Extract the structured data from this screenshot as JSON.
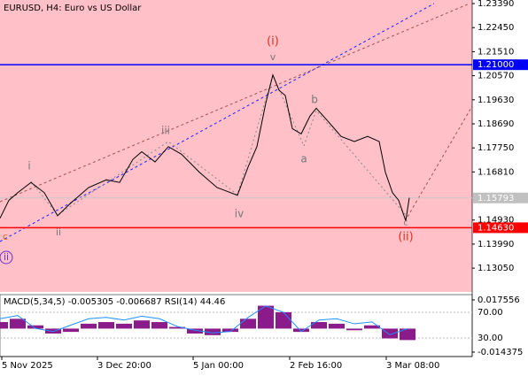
{
  "chart_data": [
    {
      "type": "line",
      "title": "EURUSD, H4:  Euro vs US Dollar",
      "background": "#ffc0c8",
      "series": [
        {
          "color": "#000000",
          "x": [
            0,
            10,
            20,
            35,
            50,
            65,
            80,
            100,
            120,
            135,
            150,
            160,
            175,
            190,
            205,
            225,
            245,
            268,
            280,
            290,
            300,
            308,
            315,
            322,
            330,
            340,
            350,
            357,
            370,
            385,
            400,
            415,
            428,
            435,
            443,
            450,
            458,
            462
          ],
          "values": [
            1.15,
            1.157,
            1.16,
            1.164,
            1.16,
            1.151,
            1.156,
            1.162,
            1.165,
            1.164,
            1.173,
            1.176,
            1.172,
            1.178,
            1.175,
            1.168,
            1.162,
            1.159,
            1.17,
            1.178,
            1.195,
            1.206,
            1.2,
            1.198,
            1.185,
            1.183,
            1.19,
            1.193,
            1.188,
            1.182,
            1.18,
            1.182,
            1.18,
            1.168,
            1.16,
            1.157,
            1.149,
            1.158
          ]
        }
      ],
      "xlim": [
        0,
        533
      ],
      "xticks": [
        {
          "value": 2,
          "label": "5 Nov 2025"
        },
        {
          "value": 110,
          "label": "3 Dec 20:00"
        },
        {
          "value": 218,
          "label": "5 Jan 00:00"
        },
        {
          "value": 327,
          "label": "2 Feb 16:00"
        },
        {
          "value": 436,
          "label": "3 Mar 08:00"
        }
      ],
      "ylim": [
        1.1212,
        1.2353
      ],
      "yticks": [
        {
          "value": 1.2339,
          "label": "1.23390"
        },
        {
          "value": 1.2245,
          "label": "1.22450"
        },
        {
          "value": 1.2151,
          "label": "1.21510"
        },
        {
          "value": 1.2057,
          "label": "1.20570"
        },
        {
          "value": 1.1963,
          "label": "1.19630"
        },
        {
          "value": 1.1869,
          "label": "1.18690"
        },
        {
          "value": 1.1775,
          "label": "1.17750"
        },
        {
          "value": 1.1681,
          "label": "1.16810"
        },
        {
          "value": 1.1493,
          "label": "1.14930"
        },
        {
          "value": 1.1399,
          "label": "1.13990"
        },
        {
          "value": 1.1305,
          "label": "1.13050"
        }
      ],
      "levels": [
        {
          "value": 1.21,
          "label": "1.21000",
          "color": "#0000ff"
        },
        {
          "value": 1.1463,
          "label": "1.14630",
          "color": "#ff0000"
        }
      ],
      "current_price": 1.15793,
      "annotations": [
        {
          "text": "(i)",
          "color": "#e0301e"
        },
        {
          "text": "v",
          "color": "#777777"
        },
        {
          "text": "b",
          "color": "#777777"
        },
        {
          "text": "a",
          "color": "#777777"
        },
        {
          "text": "iii",
          "color": "#777777"
        },
        {
          "text": "i",
          "color": "#777777"
        },
        {
          "text": "ii",
          "color": "#777777"
        },
        {
          "text": "iv",
          "color": "#777777"
        },
        {
          "text": "(ii)",
          "color": "#e0301e"
        },
        {
          "text": "c",
          "color": "#e07020"
        },
        {
          "text": "c",
          "color": "#777777"
        },
        {
          "text": "ii",
          "color": "#6633cc"
        }
      ]
    },
    {
      "type": "combo",
      "title": "MACD(5,34,5) -0.005305 -0.006687 RSI(14) 44.46",
      "series": [
        {
          "type": "bar",
          "color": "#8b1a8b",
          "x": [
            0,
            20,
            40,
            60,
            80,
            100,
            120,
            140,
            160,
            180,
            200,
            220,
            240,
            260,
            280,
            300,
            320,
            340,
            360,
            380,
            400,
            420,
            440,
            460
          ],
          "values": [
            0.004,
            0.006,
            0.002,
            -0.003,
            -0.002,
            0.003,
            0.004,
            0.003,
            0.005,
            0.004,
            0.001,
            -0.003,
            -0.004,
            -0.002,
            0.006,
            0.014,
            0.01,
            -0.002,
            0.004,
            0.003,
            -0.001,
            0.002,
            -0.006,
            -0.007
          ]
        },
        {
          "type": "line",
          "color": "#1e90ff",
          "axis": "y2",
          "x": [
            0,
            20,
            40,
            60,
            80,
            100,
            120,
            140,
            160,
            180,
            200,
            220,
            240,
            260,
            280,
            300,
            320,
            340,
            360,
            380,
            400,
            420,
            440,
            460
          ],
          "values": [
            60,
            65,
            45,
            40,
            50,
            60,
            62,
            58,
            64,
            60,
            48,
            42,
            38,
            40,
            62,
            80,
            70,
            40,
            58,
            60,
            52,
            55,
            35,
            44.46
          ]
        }
      ],
      "xlim": [
        0,
        533
      ],
      "ylim": [
        -0.01708,
        0.0208
      ],
      "yticks": [
        0.017556,
        -0.014375
      ],
      "y2lim": [
        1,
        97.6
      ],
      "y2ticks": [
        {
          "value": 70,
          "label": "70.00"
        },
        {
          "value": 30,
          "label": "30.00"
        }
      ]
    }
  ]
}
